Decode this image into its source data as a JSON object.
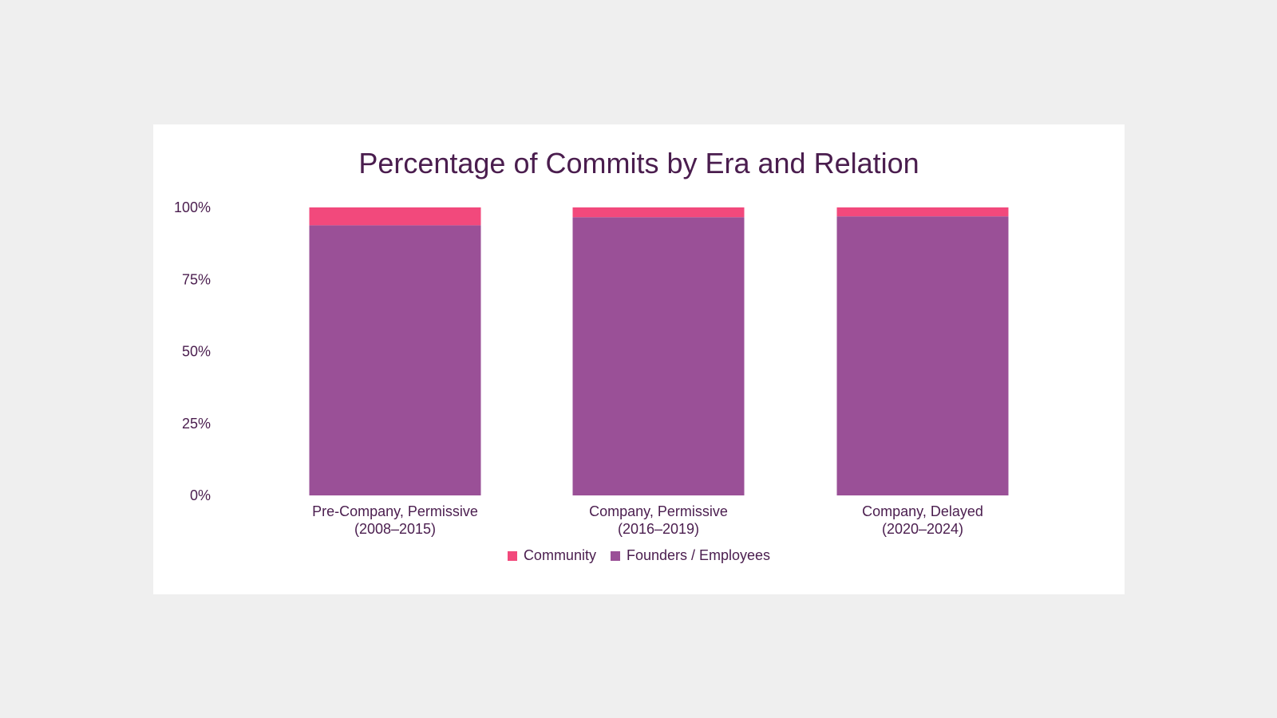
{
  "chart_data": {
    "type": "bar",
    "stacked": true,
    "title": "Percentage of Commits by Era and Relation",
    "xlabel": "",
    "ylabel": "",
    "ylim": [
      0,
      100
    ],
    "yticks": [
      "0%",
      "25%",
      "50%",
      "75%",
      "100%"
    ],
    "categories": [
      [
        "Pre-Company, Permissive",
        "(2008–2015)"
      ],
      [
        "Company, Permissive",
        "(2016–2019)"
      ],
      [
        "Company, Delayed",
        "(2020–2024)"
      ]
    ],
    "series": [
      {
        "name": "Founders / Employees",
        "color": "#9a5097",
        "values": [
          93.8,
          96.6,
          96.9
        ]
      },
      {
        "name": "Community",
        "color": "#f2497c",
        "values": [
          6.2,
          3.4,
          3.1
        ]
      }
    ],
    "legend_order": [
      "Community",
      "Founders / Employees"
    ],
    "legend_position": "bottom",
    "grid": false
  }
}
